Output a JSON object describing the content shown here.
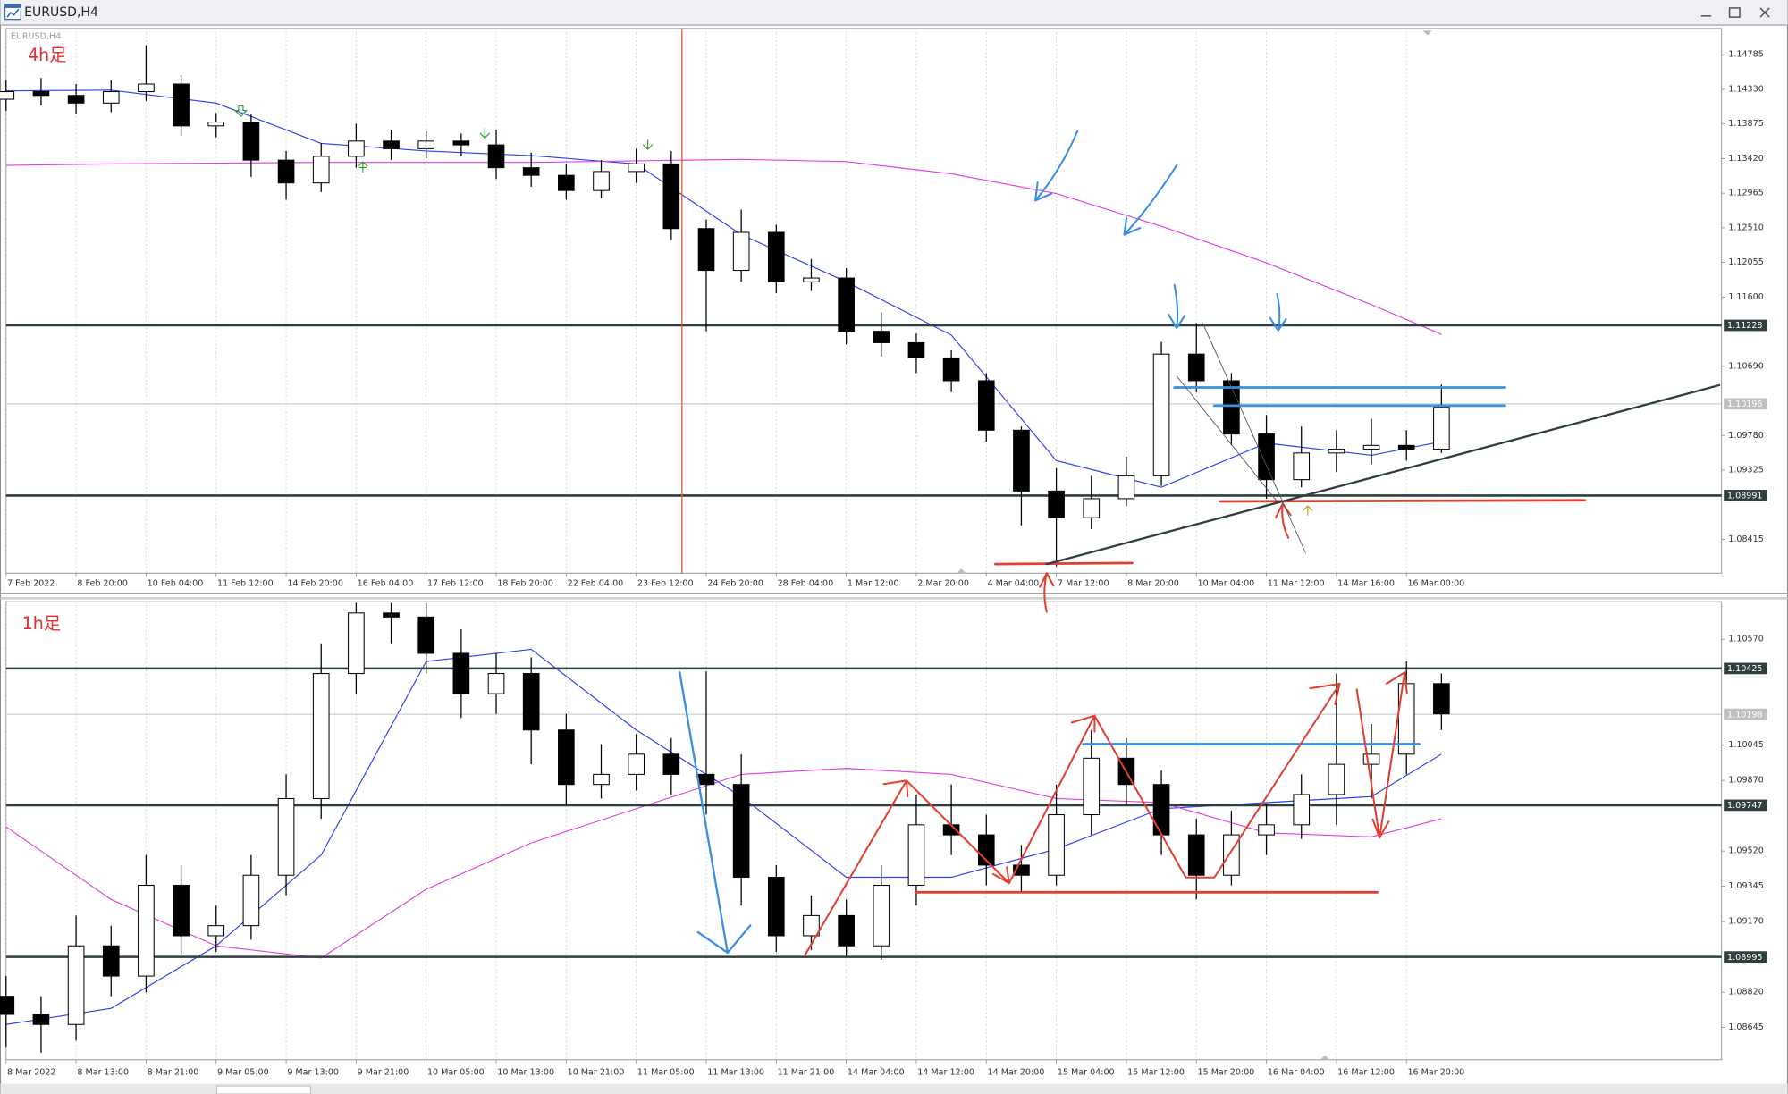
{
  "window": {
    "title": "EURUSD,H4"
  },
  "chart_data": [
    {
      "type": "candlestick",
      "symbol": "EURUSD,H4",
      "label": "4h足",
      "grid": true,
      "up_color": "#ffffff",
      "down_color": "#000000",
      "xlim": [
        0,
        49
      ],
      "xticks": [
        {
          "value": 0,
          "label": "7 Feb 2022"
        },
        {
          "value": 2,
          "label": "8 Feb 20:00"
        },
        {
          "value": 4,
          "label": "10 Feb 04:00"
        },
        {
          "value": 6,
          "label": "11 Feb 12:00"
        },
        {
          "value": 8,
          "label": "14 Feb 20:00"
        },
        {
          "value": 10,
          "label": "16 Feb 04:00"
        },
        {
          "value": 12,
          "label": "17 Feb 12:00"
        },
        {
          "value": 14,
          "label": "18 Feb 20:00"
        },
        {
          "value": 16,
          "label": "22 Feb 04:00"
        },
        {
          "value": 18,
          "label": "23 Feb 12:00"
        },
        {
          "value": 20,
          "label": "24 Feb 20:00"
        },
        {
          "value": 22,
          "label": "28 Feb 04:00"
        },
        {
          "value": 24,
          "label": "1 Mar 12:00"
        },
        {
          "value": 26,
          "label": "2 Mar 20:00"
        },
        {
          "value": 28,
          "label": "4 Mar 04:00"
        },
        {
          "value": 30,
          "label": "7 Mar 12:00"
        },
        {
          "value": 32,
          "label": "8 Mar 20:00"
        },
        {
          "value": 34,
          "label": "10 Mar 04:00"
        },
        {
          "value": 36,
          "label": "11 Mar 12:00"
        },
        {
          "value": 38,
          "label": "14 Mar 16:00"
        },
        {
          "value": 40,
          "label": "16 Mar 00:00"
        }
      ],
      "ylim": [
        1.0797,
        1.1513
      ],
      "yticks": [
        1.14785,
        {
          "value": 1.1433,
          "label": "1.14330"
        },
        1.13875,
        {
          "value": 1.1342,
          "label": "1.13420"
        },
        1.12965,
        {
          "value": 1.1251,
          "label": "1.12510"
        },
        1.12055,
        {
          "value": 1.116,
          "label": "1.11600"
        },
        {
          "value": 1.1069,
          "label": "1.10690"
        },
        {
          "value": 1.0978,
          "label": "1.09780"
        },
        1.09325,
        1.08415
      ],
      "open": [
        1.142,
        1.143,
        1.1425,
        1.1415,
        1.143,
        1.144,
        1.1385,
        1.139,
        1.134,
        1.131,
        1.1345,
        1.1365,
        1.1355,
        1.1365,
        1.136,
        1.133,
        1.132,
        1.13,
        1.1325,
        1.1335,
        1.125,
        1.1195,
        1.1245,
        1.118,
        1.1185,
        1.1115,
        1.11,
        1.108,
        1.105,
        1.0985,
        1.0905,
        1.087,
        1.0895,
        1.0925,
        1.1085,
        1.105,
        1.098,
        1.092,
        1.0955,
        1.096,
        1.0965,
        1.096
      ],
      "high": [
        1.1445,
        1.1448,
        1.144,
        1.1445,
        1.1491,
        1.1452,
        1.1402,
        1.14,
        1.1352,
        1.1362,
        1.1388,
        1.138,
        1.1378,
        1.1375,
        1.138,
        1.135,
        1.1335,
        1.134,
        1.1355,
        1.1352,
        1.1262,
        1.1275,
        1.1255,
        1.121,
        1.1198,
        1.114,
        1.1112,
        1.109,
        1.106,
        1.099,
        1.0935,
        1.0925,
        1.095,
        1.1101,
        1.1126,
        1.106,
        1.1005,
        1.099,
        1.0985,
        1.1,
        1.0985,
        1.1045
      ],
      "low": [
        1.1405,
        1.1412,
        1.14,
        1.1403,
        1.1418,
        1.1372,
        1.137,
        1.1318,
        1.1288,
        1.1298,
        1.133,
        1.134,
        1.1342,
        1.1345,
        1.1315,
        1.1305,
        1.1288,
        1.129,
        1.131,
        1.1235,
        1.1115,
        1.118,
        1.1165,
        1.1168,
        1.1098,
        1.1082,
        1.106,
        1.1035,
        1.097,
        1.086,
        1.0806,
        1.0855,
        1.0885,
        1.0912,
        1.1035,
        1.0965,
        1.0895,
        1.091,
        1.093,
        1.094,
        1.0945,
        1.0955
      ],
      "close": [
        1.143,
        1.1425,
        1.1415,
        1.143,
        1.144,
        1.1385,
        1.139,
        1.134,
        1.131,
        1.1345,
        1.1365,
        1.1355,
        1.1365,
        1.136,
        1.133,
        1.132,
        1.13,
        1.1325,
        1.1335,
        1.125,
        1.1195,
        1.1245,
        1.118,
        1.1185,
        1.1115,
        1.11,
        1.108,
        1.105,
        1.0985,
        1.0905,
        1.087,
        1.0895,
        1.0925,
        1.1085,
        1.105,
        1.098,
        1.092,
        1.0955,
        1.096,
        1.0965,
        1.096,
        1.1015
      ],
      "lines": [
        {
          "color": "#2a3ff0",
          "x": [
            0,
            3,
            6,
            9,
            12,
            15,
            18,
            21,
            24,
            27,
            30,
            33,
            36,
            39,
            41
          ],
          "values": [
            1.1431,
            1.1432,
            1.1415,
            1.1362,
            1.1352,
            1.1346,
            1.1335,
            1.1242,
            1.118,
            1.111,
            1.0945,
            1.091,
            1.0968,
            1.0952,
            1.097
          ]
        },
        {
          "color": "#e040e0",
          "x": [
            0,
            3,
            6,
            9,
            12,
            15,
            18,
            21,
            24,
            27,
            30,
            33,
            36,
            39,
            41
          ],
          "values": [
            1.1333,
            1.1335,
            1.1336,
            1.1337,
            1.1337,
            1.1337,
            1.1339,
            1.1341,
            1.1338,
            1.1322,
            1.1296,
            1.1253,
            1.1205,
            1.115,
            1.1111
          ]
        }
      ],
      "price_lines": [
        {
          "value": 1.11228,
          "color": "#2f3f3f"
        },
        {
          "value": 1.10196,
          "color": "#c0c0c0"
        },
        {
          "value": 1.08991,
          "color": "#2f3f3f"
        }
      ]
    },
    {
      "type": "candlestick",
      "label": "1h足",
      "grid": true,
      "up_color": "#ffffff",
      "down_color": "#000000",
      "xlim": [
        0,
        49
      ],
      "xticks": [
        {
          "value": 0,
          "label": "8 Mar 2022"
        },
        {
          "value": 2,
          "label": "8 Mar 13:00"
        },
        {
          "value": 4,
          "label": "8 Mar 21:00"
        },
        {
          "value": 6,
          "label": "9 Mar 05:00"
        },
        {
          "value": 8,
          "label": "9 Mar 13:00"
        },
        {
          "value": 10,
          "label": "9 Mar 21:00"
        },
        {
          "value": 12,
          "label": "10 Mar 05:00"
        },
        {
          "value": 14,
          "label": "10 Mar 13:00"
        },
        {
          "value": 16,
          "label": "10 Mar 21:00"
        },
        {
          "value": 18,
          "label": "11 Mar 05:00"
        },
        {
          "value": 20,
          "label": "11 Mar 13:00"
        },
        {
          "value": 22,
          "label": "11 Mar 21:00"
        },
        {
          "value": 24,
          "label": "14 Mar 04:00"
        },
        {
          "value": 26,
          "label": "14 Mar 12:00"
        },
        {
          "value": 28,
          "label": "14 Mar 20:00"
        },
        {
          "value": 30,
          "label": "15 Mar 04:00"
        },
        {
          "value": 32,
          "label": "15 Mar 12:00"
        },
        {
          "value": 34,
          "label": "15 Mar 20:00"
        },
        {
          "value": 36,
          "label": "16 Mar 04:00"
        },
        {
          "value": 38,
          "label": "16 Mar 12:00"
        },
        {
          "value": 40,
          "label": "16 Mar 20:00"
        }
      ],
      "ylim": [
        1.08485,
        1.10756
      ],
      "yticks": [
        {
          "value": 1.1057,
          "label": "1.10570"
        },
        1.10045,
        {
          "value": 1.0987,
          "label": "1.09870"
        },
        {
          "value": 1.0952,
          "label": "1.09520"
        },
        1.09345,
        {
          "value": 1.0917,
          "label": "1.09170"
        },
        {
          "value": 1.0882,
          "label": "1.08820"
        },
        1.08645
      ],
      "open": [
        1.088,
        1.0871,
        1.0866,
        1.0905,
        1.089,
        1.0935,
        1.091,
        1.0915,
        1.094,
        1.0978,
        1.104,
        1.107,
        1.1068,
        1.105,
        1.103,
        1.104,
        1.1012,
        1.0985,
        1.099,
        1.1,
        1.099,
        1.0985,
        1.0939,
        1.091,
        1.092,
        1.0905,
        1.0935,
        1.0965,
        1.096,
        1.0945,
        1.094,
        1.097,
        1.0998,
        1.0985,
        1.096,
        1.094,
        1.096,
        1.0965,
        1.098,
        1.0995,
        1.1,
        1.1035
      ],
      "high": [
        1.089,
        1.088,
        1.092,
        1.0915,
        1.095,
        1.0945,
        1.0925,
        1.095,
        1.099,
        1.1055,
        1.1075,
        1.1075,
        1.1075,
        1.1062,
        1.105,
        1.1048,
        1.102,
        1.1005,
        1.101,
        1.1008,
        1.1041,
        1.1,
        1.0945,
        1.093,
        1.0928,
        1.0945,
        1.098,
        1.0985,
        1.097,
        1.0955,
        1.0985,
        1.1012,
        1.1008,
        1.0992,
        1.0968,
        1.0972,
        1.0975,
        1.099,
        1.104,
        1.1015,
        1.1046,
        1.104
      ],
      "low": [
        1.0855,
        1.0852,
        1.0858,
        1.088,
        1.0882,
        1.09,
        1.0902,
        1.0908,
        1.093,
        1.0968,
        1.103,
        1.1055,
        1.104,
        1.1018,
        1.102,
        1.0995,
        1.0975,
        1.0978,
        1.0982,
        1.098,
        1.097,
        1.0925,
        1.0902,
        1.0903,
        1.09,
        1.0898,
        1.0925,
        1.095,
        1.0935,
        1.0932,
        1.0935,
        1.096,
        1.0975,
        1.095,
        1.0928,
        1.0935,
        1.095,
        1.0958,
        1.0965,
        1.0978,
        1.099,
        1.1012
      ],
      "close": [
        1.0871,
        1.0866,
        1.0905,
        1.089,
        1.0935,
        1.091,
        1.0915,
        1.094,
        1.0978,
        1.104,
        1.107,
        1.1068,
        1.105,
        1.103,
        1.104,
        1.1012,
        1.0985,
        1.099,
        1.1,
        1.099,
        1.0985,
        1.0939,
        1.091,
        1.092,
        1.0905,
        1.0935,
        1.0965,
        1.096,
        1.0945,
        1.094,
        1.097,
        1.0998,
        1.0985,
        1.096,
        1.094,
        1.096,
        1.0965,
        1.098,
        1.0995,
        1.1,
        1.1035,
        1.102
      ],
      "lines": [
        {
          "color": "#2a3ff0",
          "x": [
            0,
            3,
            6,
            9,
            12,
            15,
            18,
            21,
            24,
            27,
            30,
            33,
            36,
            39,
            41
          ],
          "values": [
            1.0866,
            1.0874,
            1.0905,
            1.095,
            1.1046,
            1.1052,
            1.1012,
            1.0979,
            1.0939,
            1.0939,
            1.0953,
            1.0973,
            1.0976,
            1.0979,
            1.1
          ]
        },
        {
          "color": "#e040e0",
          "x": [
            0,
            3,
            6,
            9,
            12,
            15,
            18,
            21,
            24,
            27,
            30,
            33,
            36,
            39,
            41
          ],
          "values": [
            1.0964,
            1.0928,
            1.0905,
            1.0899,
            1.0933,
            1.0956,
            1.0973,
            1.099,
            1.0993,
            1.099,
            1.0978,
            1.0976,
            1.0961,
            1.0959,
            1.0968
          ]
        }
      ],
      "price_lines": [
        {
          "value": 1.10425,
          "color": "#2f3f3f"
        },
        {
          "value": 1.10198,
          "color": "#c0c0c0"
        },
        {
          "value": 1.09747,
          "color": "#2f3f3f"
        },
        {
          "value": 1.08995,
          "color": "#2f3f3f"
        }
      ]
    }
  ]
}
